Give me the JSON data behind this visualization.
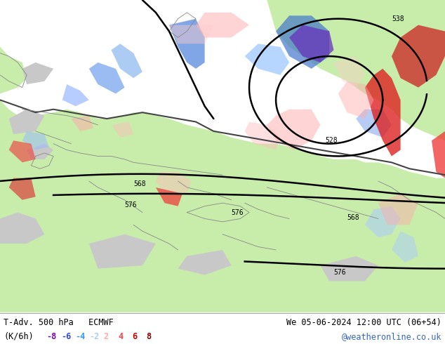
{
  "title_left_line1": "T-Adv. 500 hPa   ECMWF",
  "title_left_line2": "(K/6h)",
  "title_right_line1": "We 05-06-2024 12:00 UTC (06+54)",
  "title_right_line2": "@weatheronline.co.uk",
  "legend_values": [
    -8,
    -6,
    -4,
    -2,
    2,
    4,
    6,
    8
  ],
  "legend_colors": [
    "#7700bb",
    "#3344ee",
    "#3399ff",
    "#aaccff",
    "#ffaaaa",
    "#ff4444",
    "#cc0000",
    "#880000"
  ],
  "ocean_color": "#d0d0d0",
  "land_color": "#c8edaa",
  "border_color": "#888888",
  "contour_color": "#000000",
  "bottom_bar_color": "#ffffff",
  "font_color": "#000000",
  "website_color": "#3366cc",
  "figsize": [
    6.34,
    4.9
  ],
  "dpi": 100
}
